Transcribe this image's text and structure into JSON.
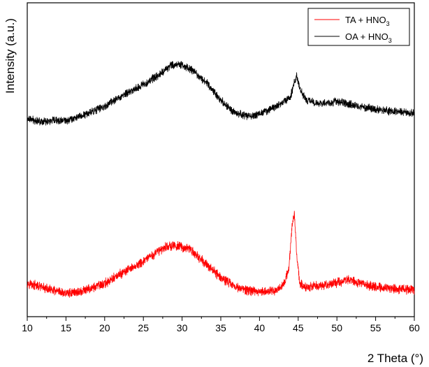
{
  "chart_data": {
    "type": "line",
    "title": "",
    "xlabel": "2 Theta (°)",
    "ylabel": "Intensity (a.u.)",
    "xlim": [
      10,
      60
    ],
    "x_ticks": [
      10,
      15,
      20,
      25,
      30,
      35,
      40,
      45,
      50,
      55,
      60
    ],
    "y_ticks_shown": false,
    "ylim": [
      0,
      1
    ],
    "grid": false,
    "legend_position": "top-right",
    "series": [
      {
        "name": "TA + HNO3",
        "legend_main": "TA + HNO",
        "legend_sub": "3",
        "color": "#ff0000",
        "noise": 0.012,
        "x": [
          10,
          12,
          14,
          15,
          17,
          20,
          22,
          25,
          27,
          28,
          29.5,
          31,
          33,
          35,
          37,
          38,
          40,
          42,
          43,
          43.8,
          44.2,
          44.5,
          44.8,
          45.2,
          46,
          48,
          50,
          51.5,
          53,
          55,
          58,
          60
        ],
        "values": [
          0.108,
          0.092,
          0.078,
          0.075,
          0.08,
          0.105,
          0.135,
          0.175,
          0.21,
          0.225,
          0.225,
          0.215,
          0.17,
          0.125,
          0.095,
          0.085,
          0.08,
          0.083,
          0.1,
          0.15,
          0.29,
          0.33,
          0.2,
          0.105,
          0.095,
          0.098,
          0.108,
          0.12,
          0.105,
          0.095,
          0.088,
          0.085
        ]
      },
      {
        "name": "OA + HNO3",
        "legend_main": "OA + HNO",
        "legend_sub": "3",
        "color": "#000000",
        "noise": 0.01,
        "x": [
          10,
          12,
          15,
          17,
          20,
          22,
          25,
          27,
          28.5,
          29.5,
          31,
          33,
          35,
          36.5,
          38,
          39,
          41,
          43,
          44,
          44.5,
          44.8,
          45.3,
          46,
          48,
          50,
          52,
          55,
          58,
          60
        ],
        "values": [
          0.63,
          0.622,
          0.625,
          0.64,
          0.67,
          0.7,
          0.74,
          0.77,
          0.8,
          0.805,
          0.79,
          0.75,
          0.69,
          0.655,
          0.64,
          0.64,
          0.655,
          0.68,
          0.7,
          0.745,
          0.765,
          0.72,
          0.69,
          0.68,
          0.685,
          0.675,
          0.66,
          0.652,
          0.65
        ]
      }
    ]
  }
}
